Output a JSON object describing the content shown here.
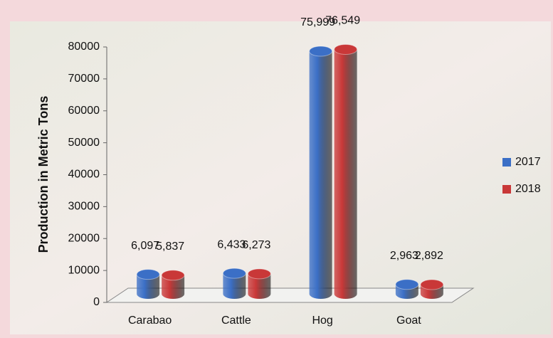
{
  "chart_data": {
    "type": "bar3d",
    "y_label": "Production in Metric Tons",
    "categories": [
      "Carabao",
      "Cattle",
      "Hog",
      "Goat"
    ],
    "series": [
      {
        "name": "2017",
        "color": "#3b6fc6",
        "values": [
          6097,
          6433,
          75999,
          2963
        ],
        "value_labels": [
          "6,097",
          "6,433",
          "75,999",
          "2,963"
        ]
      },
      {
        "name": "2018",
        "color": "#c93838",
        "values": [
          5837,
          6273,
          76549,
          2892
        ],
        "value_labels": [
          "5,837",
          "6,273",
          "76,549",
          "2,892"
        ]
      }
    ],
    "ylim": [
      0,
      80000
    ],
    "yticks": [
      0,
      10000,
      20000,
      30000,
      40000,
      50000,
      60000,
      70000,
      80000
    ],
    "legend": "right"
  }
}
